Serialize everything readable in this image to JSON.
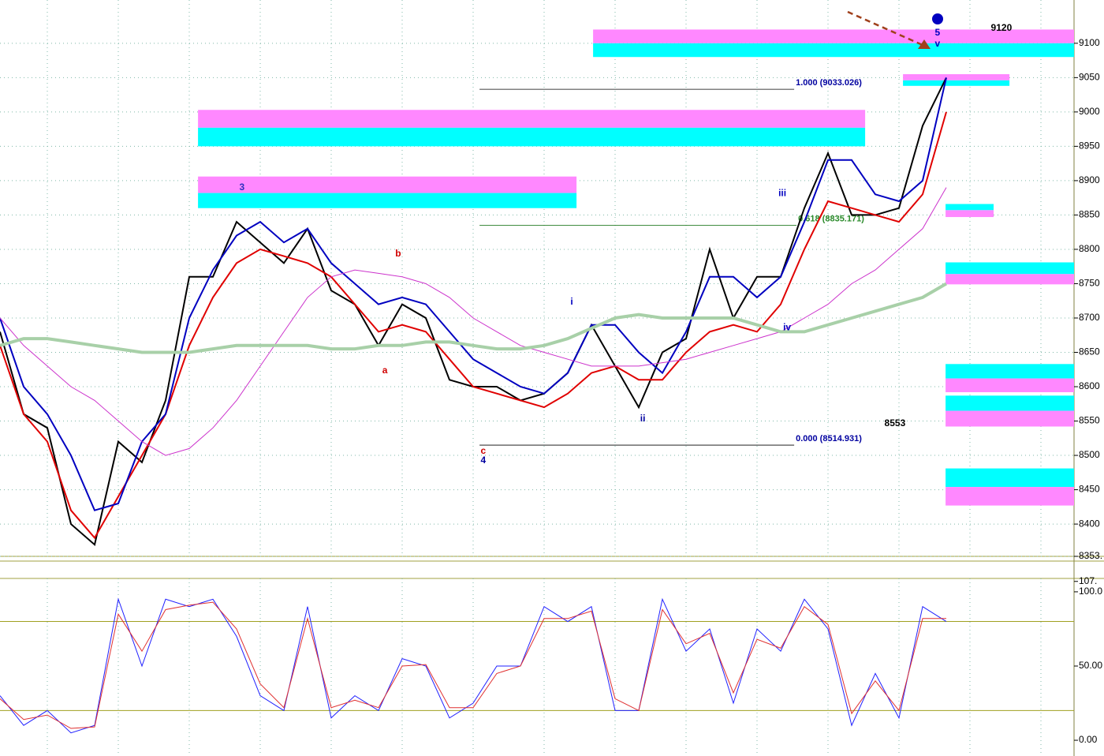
{
  "chart_data": [
    {
      "type": "line",
      "x": [
        0,
        1,
        2,
        3,
        4,
        5,
        6,
        7,
        8,
        9,
        10,
        11,
        12,
        13,
        14,
        15,
        16,
        17,
        18,
        19,
        20,
        21,
        22,
        23,
        24,
        25,
        26,
        27,
        28,
        29,
        30,
        31,
        32,
        33,
        34,
        35,
        36,
        37,
        38,
        39,
        40
      ],
      "xlim": [
        0,
        45.4
      ],
      "ylim": [
        8353,
        9163
      ],
      "yticks": [
        8400,
        8450,
        8500,
        8550,
        8600,
        8650,
        8700,
        8750,
        8800,
        8850,
        8900,
        8950,
        9000,
        9050,
        9100,
        {
          "value": 8353,
          "label": "8353."
        }
      ],
      "grid": true,
      "series": [
        {
          "color": "#000000",
          "values": [
            8680,
            8560,
            8540,
            8400,
            8370,
            8520,
            8490,
            8580,
            8760,
            8760,
            8840,
            8810,
            8780,
            8830,
            8740,
            8720,
            8660,
            8720,
            8700,
            8610,
            8600,
            8600,
            8580,
            8590,
            8620,
            8690,
            8630,
            8570,
            8650,
            8670,
            8800,
            8700,
            8760,
            8760,
            8860,
            8940,
            8850,
            8850,
            8860,
            8980,
            9050
          ]
        },
        {
          "color": "#e00000",
          "values": [
            8660,
            8560,
            8520,
            8420,
            8380,
            8440,
            8500,
            8560,
            8660,
            8730,
            8780,
            8800,
            8790,
            8780,
            8760,
            8720,
            8680,
            8690,
            8680,
            8640,
            8600,
            8590,
            8580,
            8570,
            8590,
            8620,
            8630,
            8610,
            8610,
            8650,
            8680,
            8690,
            8680,
            8720,
            8800,
            8870,
            8860,
            8850,
            8840,
            8880,
            9000
          ]
        },
        {
          "color": "#0000c0",
          "values": [
            8700,
            8600,
            8560,
            8500,
            8420,
            8430,
            8520,
            8560,
            8700,
            8770,
            8820,
            8840,
            8810,
            8830,
            8780,
            8750,
            8720,
            8730,
            8720,
            8680,
            8640,
            8620,
            8600,
            8590,
            8620,
            8690,
            8690,
            8650,
            8620,
            8680,
            8760,
            8760,
            8730,
            8760,
            8840,
            8930,
            8930,
            8880,
            8870,
            8900,
            9050
          ]
        },
        {
          "color": "#cc33cc",
          "values": [
            8700,
            8660,
            8630,
            8600,
            8580,
            8550,
            8520,
            8500,
            8510,
            8540,
            8580,
            8630,
            8680,
            8730,
            8760,
            8770,
            8765,
            8760,
            8750,
            8730,
            8700,
            8680,
            8660,
            8650,
            8640,
            8630,
            8630,
            8630,
            8635,
            8640,
            8650,
            8660,
            8670,
            8680,
            8700,
            8720,
            8750,
            8770,
            8800,
            8830,
            8890
          ]
        },
        {
          "color": "#a8d0a8",
          "values": [
            8660,
            8670,
            8670,
            8665,
            8660,
            8655,
            8650,
            8650,
            8650,
            8655,
            8660,
            8660,
            8660,
            8660,
            8655,
            8655,
            8660,
            8660,
            8665,
            8665,
            8660,
            8655,
            8655,
            8660,
            8670,
            8685,
            8700,
            8705,
            8700,
            8700,
            8700,
            8700,
            8690,
            8680,
            8680,
            8690,
            8700,
            8710,
            8720,
            8730,
            8750
          ]
        }
      ],
      "zones": [
        {
          "x": [
            25.07,
            45.4
          ],
          "top": 9120,
          "mid": 9100,
          "bottom": 9080,
          "colors": [
            "#ff88ff",
            "#00ffff"
          ]
        },
        {
          "x": [
            8.37,
            36.57
          ],
          "top": 9003,
          "mid": 8977,
          "bottom": 8950,
          "colors": [
            "#ff88ff",
            "#00ffff"
          ]
        },
        {
          "x": [
            8.37,
            24.37
          ],
          "top": 8906,
          "mid": 8882,
          "bottom": 8860,
          "colors": [
            "#ff88ff",
            "#00ffff"
          ]
        },
        {
          "x": [
            38.17,
            42.67
          ],
          "top": 9055,
          "mid": 9046,
          "bottom": 9038,
          "colors": [
            "#ff88ff",
            "#00ffff"
          ]
        },
        {
          "x": [
            39.97,
            42.0
          ],
          "top": 8866,
          "mid": 8857,
          "bottom": 8847,
          "colors": [
            "#00ffff",
            "#ff88ff"
          ]
        },
        {
          "x": [
            39.97,
            45.4
          ],
          "top": 8781,
          "mid": 8764,
          "bottom": 8749,
          "colors": [
            "#00ffff",
            "#ff88ff"
          ]
        },
        {
          "x": [
            39.97,
            45.4
          ],
          "top": 8633,
          "mid": 8612,
          "bottom": 8592,
          "colors": [
            "#00ffff",
            "#ff88ff"
          ]
        },
        {
          "x": [
            39.97,
            45.4
          ],
          "top": 8587,
          "mid": 8565,
          "bottom": 8542,
          "colors": [
            "#00ffff",
            "#ff88ff"
          ]
        },
        {
          "x": [
            39.97,
            45.4
          ],
          "top": 8481,
          "mid": 8454,
          "bottom": 8427,
          "colors": [
            "#00ffff",
            "#ff88ff"
          ]
        }
      ],
      "levels": [
        {
          "value": 9033.026,
          "x": [
            20.27,
            33.57
          ],
          "label": "1.000 (9033.026)",
          "color": "#000000",
          "text_color": "#0000a0"
        },
        {
          "value": 8835,
          "x": [
            20.27,
            33.67
          ],
          "label": "0.618 (8835.171)",
          "color": "#006600",
          "text_color": "#2a8a2a"
        },
        {
          "value": 8514.931,
          "x": [
            20.27,
            33.57
          ],
          "label": "0.000 (8514.931)",
          "color": "#000000",
          "text_color": "#0000a0"
        }
      ],
      "annotations": [
        {
          "text": "3",
          "x": 10.23,
          "y": 8890,
          "color": "#3030c0"
        },
        {
          "text": "b",
          "x": 16.83,
          "y": 8793,
          "color": "#d00000"
        },
        {
          "text": "a",
          "x": 16.27,
          "y": 8623,
          "color": "#d00000"
        },
        {
          "text": "c",
          "x": 20.43,
          "y": 8506,
          "color": "#d00000"
        },
        {
          "text": "4",
          "x": 20.43,
          "y": 8492,
          "color": "#0000a0"
        },
        {
          "text": "i",
          "x": 24.17,
          "y": 8723,
          "color": "#0000c0"
        },
        {
          "text": "ii",
          "x": 27.17,
          "y": 8553,
          "color": "#0000a0"
        },
        {
          "text": "iii",
          "x": 33.07,
          "y": 8881,
          "color": "#0000c0"
        },
        {
          "text": "iv",
          "x": 33.27,
          "y": 8686,
          "color": "#0000c0"
        },
        {
          "text": "v",
          "x": 39.63,
          "y": 9099,
          "color": "#0000c0"
        },
        {
          "text": "5",
          "x": 39.63,
          "y": 9115,
          "color": "#0000c0"
        },
        {
          "text": "9120",
          "x": 42.33,
          "y": 9122,
          "color": "#000000"
        },
        {
          "text": "8553",
          "x": 37.83,
          "y": 8546,
          "color": "#000000"
        }
      ]
    },
    {
      "type": "line",
      "x": [
        0,
        1,
        2,
        3,
        4,
        5,
        6,
        7,
        8,
        9,
        10,
        11,
        12,
        13,
        14,
        15,
        16,
        17,
        18,
        19,
        20,
        21,
        22,
        23,
        24,
        25,
        26,
        27,
        28,
        29,
        30,
        31,
        32,
        33,
        34,
        35,
        36,
        37,
        38,
        39,
        40
      ],
      "xlim": [
        0,
        45.4
      ],
      "ylim": [
        -10.6,
        109
      ],
      "yticks": [
        {
          "value": 0,
          "label": "0.00"
        },
        {
          "value": 50,
          "label": "50.00"
        },
        {
          "value": 100,
          "label": "100.0"
        },
        {
          "value": 107,
          "label": "107."
        }
      ],
      "levels": [
        20,
        80
      ],
      "series": [
        {
          "color": "#2020ff",
          "values": [
            30,
            10,
            20,
            5,
            10,
            95,
            50,
            95,
            90,
            95,
            70,
            30,
            20,
            90,
            15,
            30,
            20,
            55,
            50,
            15,
            25,
            50,
            50,
            90,
            80,
            90,
            20,
            20,
            95,
            60,
            75,
            25,
            75,
            60,
            95,
            75,
            10,
            45,
            15,
            90,
            80
          ]
        },
        {
          "color": "#e03030",
          "values": [
            28,
            14,
            17,
            8,
            9,
            85,
            60,
            88,
            91,
            93,
            75,
            38,
            22,
            82,
            22,
            27,
            22,
            50,
            51,
            22,
            22,
            45,
            50,
            82,
            82,
            87,
            28,
            20,
            88,
            65,
            72,
            32,
            68,
            62,
            90,
            78,
            18,
            40,
            20,
            82,
            82
          ]
        }
      ]
    }
  ]
}
